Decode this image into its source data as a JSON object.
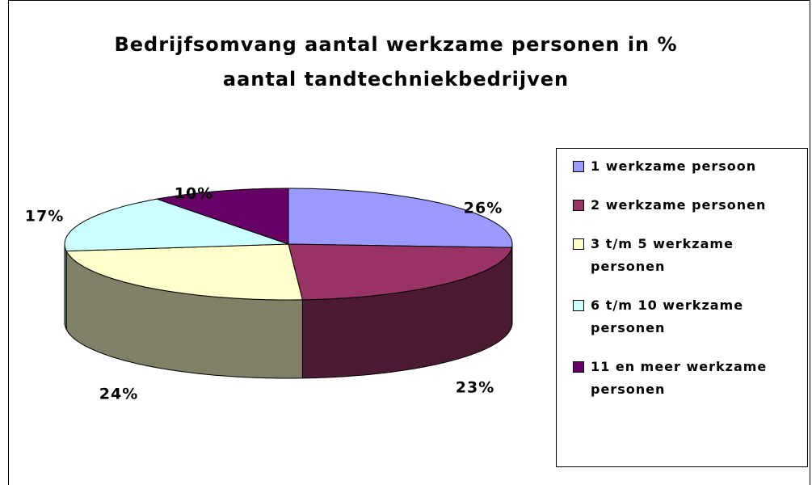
{
  "chart_data": {
    "type": "pie",
    "title": "Bedrijfsomvang aantal werkzame personen in % aantal tandtechniekbedrijven",
    "categories": [
      "1 werkzame persoon",
      "2 werkzame personen",
      "3 t/m 5 werkzame personen",
      "6 t/m 10 werkzame personen",
      "11 en meer werkzame personen"
    ],
    "values": [
      26,
      23,
      24,
      17,
      10
    ],
    "value_labels": [
      "26%",
      "23%",
      "24%",
      "17%",
      "10%"
    ],
    "colors": [
      "#9999ff",
      "#993366",
      "#ffffcc",
      "#ccffff",
      "#660066"
    ],
    "legend": "right"
  }
}
